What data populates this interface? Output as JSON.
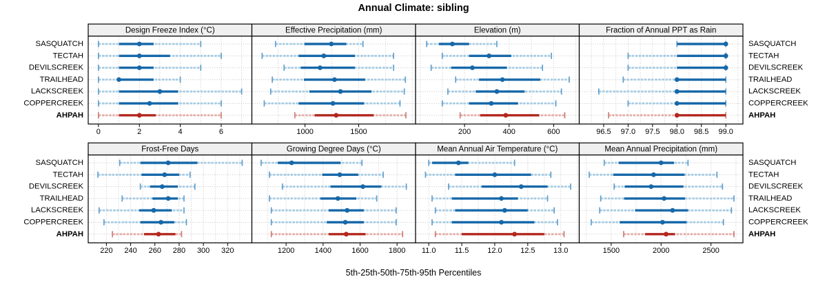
{
  "title": "Annual Climate: sibling",
  "caption": "5th-25th-50th-75th-95th Percentiles",
  "colors": {
    "normal": {
      "main": "#1668a9",
      "light": "#a6cbe4",
      "cap": "#5f9fcd"
    },
    "highlight": {
      "main": "#b3271f",
      "light": "#e5aeaa",
      "cap": "#cc7d75"
    },
    "strip_bg": "#f0f0f0",
    "grid": "#c4c4c4",
    "border": "#000000",
    "text": "#000000"
  },
  "chart_data": {
    "type": "percentile-dotplot-trellis",
    "percentile_levels": [
      5,
      25,
      50,
      75,
      95
    ],
    "sites": [
      "SASQUATCH",
      "TECTAH",
      "DEVILSCREEK",
      "TRAILHEAD",
      "LACKSCREEK",
      "COPPERCREEK",
      "AHPAH"
    ],
    "highlight_site": "AHPAH",
    "legend_position": "none",
    "grid": "dotted",
    "panels": [
      {
        "id": "design-freeze-index",
        "row": 0,
        "col": 0,
        "strip_label": "Design Freeze Index (°C)",
        "xlim": [
          -0.5,
          7.5
        ],
        "tick_values": [
          0,
          2,
          4,
          6
        ],
        "tick_labels": [
          "0",
          "2",
          "4",
          "6"
        ],
        "gridlines": [
          0,
          1,
          2,
          3,
          4,
          5,
          6,
          7
        ],
        "values": [
          [
            0,
            1,
            2,
            2.7,
            5
          ],
          [
            0,
            1,
            2,
            3.5,
            6
          ],
          [
            0,
            1,
            2,
            2.7,
            5
          ],
          [
            0,
            1,
            1,
            2.7,
            4
          ],
          [
            0,
            1,
            3,
            3.9,
            7
          ],
          [
            0,
            1,
            2.5,
            3.9,
            6
          ],
          [
            0,
            1,
            2,
            2.8,
            6
          ]
        ]
      },
      {
        "id": "effective-precipitation",
        "row": 0,
        "col": 1,
        "strip_label": "Effective Precipitation (mm)",
        "xlim": [
          505,
          2030
        ],
        "tick_values": [
          1000,
          1500
        ],
        "tick_labels": [
          "1000",
          "1500"
        ],
        "gridlines": [
          750,
          1000,
          1250,
          1500,
          1750,
          2000
        ],
        "values": [
          [
            725,
            995,
            1245,
            1385,
            1540
          ],
          [
            600,
            940,
            1175,
            1465,
            1825
          ],
          [
            805,
            960,
            1140,
            1465,
            1825
          ],
          [
            695,
            990,
            1275,
            1560,
            1935
          ],
          [
            680,
            1040,
            1330,
            1620,
            1925
          ],
          [
            620,
            940,
            1260,
            1550,
            1885
          ],
          [
            905,
            1090,
            1290,
            1640,
            1940
          ]
        ]
      },
      {
        "id": "elevation",
        "row": 0,
        "col": 2,
        "strip_label": "Elevation (m)",
        "xlim": [
          -20,
          715
        ],
        "tick_values": [
          200,
          400,
          600
        ],
        "tick_labels": [
          "200",
          "400",
          "600"
        ],
        "gridlines": [
          0,
          100,
          200,
          300,
          400,
          500,
          600,
          700
        ],
        "values": [
          [
            30,
            85,
            145,
            220,
            345
          ],
          [
            100,
            220,
            310,
            410,
            590
          ],
          [
            50,
            140,
            235,
            390,
            550
          ],
          [
            160,
            265,
            370,
            540,
            670
          ],
          [
            125,
            250,
            345,
            470,
            635
          ],
          [
            100,
            220,
            320,
            440,
            610
          ],
          [
            180,
            270,
            385,
            535,
            650
          ]
        ]
      },
      {
        "id": "fraction-annual-ppt-as-rain",
        "row": 0,
        "col": 3,
        "strip_label": "Fraction of Annual PPT as Rain",
        "xlim": [
          96.0,
          99.35
        ],
        "tick_values": [
          96.5,
          97.0,
          97.5,
          98.0,
          98.5,
          99.0
        ],
        "tick_labels": [
          "96.5",
          "97.0",
          "97.5",
          "98.0",
          "98.5",
          "99.0"
        ],
        "gridlines": [
          96.25,
          96.5,
          96.75,
          97.0,
          97.25,
          97.5,
          97.75,
          98.0,
          98.25,
          98.5,
          98.75,
          99.0,
          99.25
        ],
        "values": [
          [
            98.0,
            98.0,
            99.0,
            99.0,
            99.0
          ],
          [
            97.0,
            98.0,
            99.0,
            99.0,
            99.0
          ],
          [
            97.0,
            98.0,
            99.0,
            99.0,
            99.0
          ],
          [
            96.9,
            98.0,
            98.0,
            99.0,
            99.0
          ],
          [
            96.4,
            98.0,
            98.0,
            99.0,
            99.0
          ],
          [
            97.0,
            98.0,
            98.0,
            99.0,
            99.0
          ],
          [
            96.6,
            98.0,
            98.0,
            99.0,
            99.0
          ]
        ]
      },
      {
        "id": "frost-free-days",
        "row": 1,
        "col": 0,
        "strip_label": "Frost-Free Days",
        "xlim": [
          205,
          340
        ],
        "tick_values": [
          220,
          240,
          260,
          280,
          300,
          320
        ],
        "tick_labels": [
          "220",
          "240",
          "260",
          "280",
          "300",
          "320"
        ],
        "gridlines": [
          210,
          220,
          230,
          240,
          250,
          260,
          270,
          280,
          290,
          300,
          310,
          320,
          330
        ],
        "values": [
          [
            231,
            248,
            271,
            295,
            332
          ],
          [
            213,
            249,
            268,
            280,
            289
          ],
          [
            248,
            256,
            266,
            279,
            293
          ],
          [
            233,
            258,
            271,
            279,
            284
          ],
          [
            214,
            247,
            259,
            274,
            284
          ],
          [
            218,
            248,
            265,
            276,
            286
          ],
          [
            225,
            251,
            263,
            277,
            282
          ]
        ]
      },
      {
        "id": "growing-degree-days",
        "row": 1,
        "col": 1,
        "strip_label": "Growing Degree Days (°C)",
        "xlim": [
          1015,
          1900
        ],
        "tick_values": [
          1200,
          1400,
          1600,
          1800
        ],
        "tick_labels": [
          "1200",
          "1400",
          "1600",
          "1800"
        ],
        "gridlines": [
          1100,
          1200,
          1300,
          1400,
          1500,
          1600,
          1700,
          1800
        ],
        "values": [
          [
            1065,
            1155,
            1230,
            1495,
            1610
          ],
          [
            1110,
            1395,
            1490,
            1590,
            1725
          ],
          [
            1180,
            1440,
            1615,
            1715,
            1850
          ],
          [
            1110,
            1385,
            1480,
            1580,
            1690
          ],
          [
            1120,
            1430,
            1530,
            1620,
            1795
          ],
          [
            1120,
            1420,
            1520,
            1620,
            1795
          ],
          [
            1120,
            1430,
            1525,
            1630,
            1830
          ]
        ]
      },
      {
        "id": "mean-annual-air-temperature",
        "row": 1,
        "col": 2,
        "strip_label": "Mean Annual Air Temperature (°C)",
        "xlim": [
          10.8,
          13.28
        ],
        "tick_values": [
          11.0,
          11.5,
          12.0,
          12.5,
          13.0
        ],
        "tick_labels": [
          "11.0",
          "11.5",
          "12.0",
          "12.5",
          "13.0"
        ],
        "gridlines": [
          11.0,
          11.25,
          11.5,
          11.75,
          12.0,
          12.25,
          12.5,
          12.75,
          13.0,
          13.25
        ],
        "values": [
          [
            11.0,
            11.05,
            11.45,
            11.6,
            12.3
          ],
          [
            10.95,
            11.4,
            12.0,
            12.55,
            12.85
          ],
          [
            11.3,
            11.8,
            12.4,
            12.8,
            13.15
          ],
          [
            11.05,
            11.35,
            12.1,
            12.35,
            12.8
          ],
          [
            11.1,
            11.4,
            12.15,
            12.5,
            12.9
          ],
          [
            11.05,
            11.35,
            12.1,
            12.6,
            12.95
          ],
          [
            11.1,
            11.5,
            12.3,
            12.75,
            13.05
          ]
        ]
      },
      {
        "id": "mean-annual-precipitation",
        "row": 1,
        "col": 3,
        "strip_label": "Mean Annual Precipitation (mm)",
        "xlim": [
          1180,
          2820
        ],
        "tick_values": [
          1500,
          2000,
          2500
        ],
        "tick_labels": [
          "1500",
          "2000",
          "2500"
        ],
        "gridlines": [
          1250,
          1500,
          1750,
          2000,
          2250,
          2500,
          2750
        ],
        "values": [
          [
            1430,
            1575,
            2000,
            2130,
            2270
          ],
          [
            1280,
            1520,
            1925,
            2235,
            2560
          ],
          [
            1530,
            1635,
            1900,
            2225,
            2615
          ],
          [
            1395,
            1630,
            2030,
            2240,
            2730
          ],
          [
            1385,
            1740,
            2115,
            2270,
            2705
          ],
          [
            1300,
            1585,
            2015,
            2255,
            2625
          ],
          [
            1625,
            1840,
            2050,
            2140,
            2730
          ]
        ]
      }
    ]
  }
}
